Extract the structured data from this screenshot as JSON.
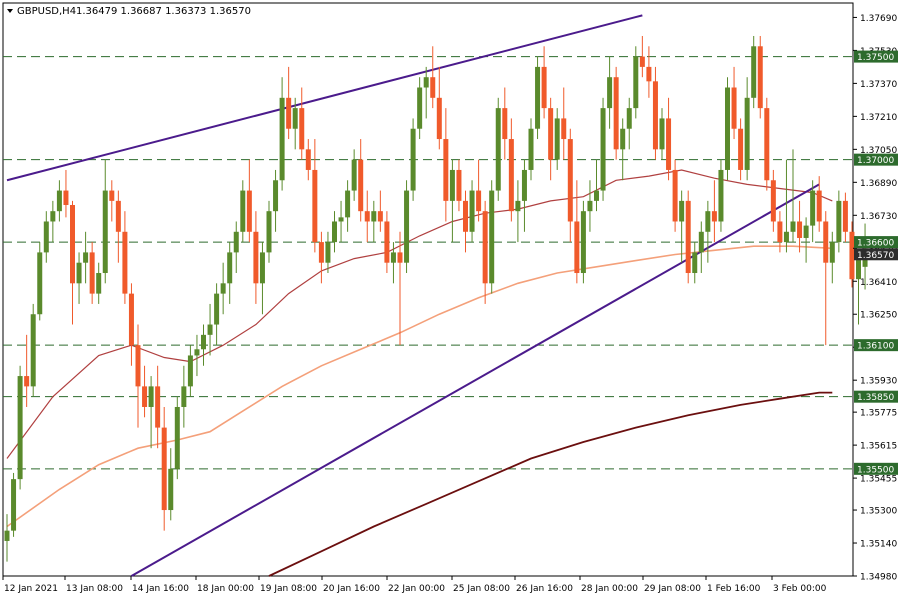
{
  "header": {
    "symbol": "GBPUSD,H4",
    "ohlc": "1.36479 1.36687 1.36373 1.36570"
  },
  "colors": {
    "bull": "#5a8a2c",
    "bear": "#f05a2b",
    "ma_fast": "#b04040",
    "ma_mid": "#f4a07a",
    "ma_slow": "#6b0f0f",
    "trendline": "#4b1b8c",
    "level_line": "#2d6b2d",
    "level_label_bg": "#2d6b2d",
    "current_label_bg": "#2d2d2d",
    "grid": "#000000"
  },
  "chart_data": {
    "type": "candlestick",
    "title": "GBPUSD,H4",
    "ylim": [
      1.3498,
      1.3776
    ],
    "y_ticks": [
      "1.37690",
      "1.37530",
      "1.37370",
      "1.37210",
      "1.37050",
      "1.36890",
      "1.36730",
      "1.36570",
      "1.36410",
      "1.36250",
      "1.36090",
      "1.35930",
      "1.35775",
      "1.35615",
      "1.35455",
      "1.35300",
      "1.35140",
      "1.34980"
    ],
    "x_ticks": [
      "12 Jan 2021",
      "13 Jan 08:00",
      "14 Jan 16:00",
      "18 Jan 00:00",
      "19 Jan 08:00",
      "20 Jan 16:00",
      "22 Jan 00:00",
      "25 Jan 08:00",
      "26 Jan 16:00",
      "28 Jan 00:00",
      "29 Jan 08:00",
      "1 Feb 16:00",
      "3 Feb 00:00"
    ],
    "levels": [
      {
        "value": 1.375,
        "label": "1.37500"
      },
      {
        "value": 1.37,
        "label": "1.37000"
      },
      {
        "value": 1.366,
        "label": "1.36600"
      },
      {
        "value": 1.361,
        "label": "1.36100"
      },
      {
        "value": 1.3585,
        "label": "1.35850"
      },
      {
        "value": 1.355,
        "label": "1.35500"
      }
    ],
    "current_price": {
      "value": 1.3657,
      "label": "1.36570"
    },
    "trendlines": [
      {
        "from": [
          0,
          1.369
        ],
        "to": [
          97,
          1.377
        ]
      },
      {
        "from": [
          19,
          1.3498
        ],
        "to": [
          124,
          1.3688
        ]
      }
    ],
    "candles": [
      [
        1.3515,
        1.3528,
        1.3505,
        1.352
      ],
      [
        1.352,
        1.3548,
        1.3517,
        1.3545
      ],
      [
        1.3545,
        1.36,
        1.354,
        1.3595
      ],
      [
        1.3595,
        1.3615,
        1.358,
        1.359
      ],
      [
        1.359,
        1.363,
        1.3585,
        1.3625
      ],
      [
        1.3625,
        1.366,
        1.3622,
        1.3655
      ],
      [
        1.3655,
        1.3675,
        1.365,
        1.367
      ],
      [
        1.367,
        1.368,
        1.366,
        1.3675
      ],
      [
        1.3675,
        1.369,
        1.367,
        1.3685
      ],
      [
        1.3685,
        1.3695,
        1.3672,
        1.3678
      ],
      [
        1.3678,
        1.368,
        1.362,
        1.364
      ],
      [
        1.364,
        1.3655,
        1.363,
        1.365
      ],
      [
        1.365,
        1.3665,
        1.364,
        1.3655
      ],
      [
        1.3655,
        1.366,
        1.363,
        1.3635
      ],
      [
        1.3635,
        1.365,
        1.363,
        1.3645
      ],
      [
        1.3645,
        1.37,
        1.364,
        1.3685
      ],
      [
        1.3685,
        1.369,
        1.367,
        1.368
      ],
      [
        1.368,
        1.3685,
        1.365,
        1.3665
      ],
      [
        1.3665,
        1.3675,
        1.363,
        1.3635
      ],
      [
        1.3635,
        1.364,
        1.36,
        1.361
      ],
      [
        1.361,
        1.362,
        1.357,
        1.359
      ],
      [
        1.359,
        1.36,
        1.3575,
        1.358
      ],
      [
        1.358,
        1.3595,
        1.356,
        1.359
      ],
      [
        1.359,
        1.36,
        1.356,
        1.357
      ],
      [
        1.357,
        1.358,
        1.352,
        1.353
      ],
      [
        1.353,
        1.356,
        1.3525,
        1.355
      ],
      [
        1.355,
        1.3585,
        1.3545,
        1.358
      ],
      [
        1.358,
        1.36,
        1.357,
        1.359
      ],
      [
        1.359,
        1.361,
        1.3585,
        1.3605
      ],
      [
        1.3605,
        1.3615,
        1.3595,
        1.3608
      ],
      [
        1.3608,
        1.362,
        1.36,
        1.3615
      ],
      [
        1.3615,
        1.363,
        1.3605,
        1.362
      ],
      [
        1.362,
        1.364,
        1.361,
        1.3635
      ],
      [
        1.3635,
        1.365,
        1.3625,
        1.364
      ],
      [
        1.364,
        1.366,
        1.363,
        1.3655
      ],
      [
        1.3655,
        1.367,
        1.3645,
        1.3665
      ],
      [
        1.3665,
        1.369,
        1.366,
        1.3685
      ],
      [
        1.3685,
        1.37,
        1.366,
        1.3665
      ],
      [
        1.3665,
        1.3675,
        1.363,
        1.364
      ],
      [
        1.364,
        1.366,
        1.3625,
        1.3655
      ],
      [
        1.3655,
        1.368,
        1.365,
        1.3675
      ],
      [
        1.3675,
        1.3695,
        1.3665,
        1.369
      ],
      [
        1.369,
        1.374,
        1.3685,
        1.373
      ],
      [
        1.373,
        1.3745,
        1.371,
        1.3715
      ],
      [
        1.3715,
        1.373,
        1.3705,
        1.3725
      ],
      [
        1.3725,
        1.3735,
        1.37,
        1.3705
      ],
      [
        1.3705,
        1.371,
        1.369,
        1.3695
      ],
      [
        1.3695,
        1.371,
        1.3655,
        1.366
      ],
      [
        1.366,
        1.3665,
        1.364,
        1.365
      ],
      [
        1.365,
        1.3665,
        1.3645,
        1.366
      ],
      [
        1.366,
        1.3675,
        1.3655,
        1.367
      ],
      [
        1.367,
        1.368,
        1.366,
        1.3672
      ],
      [
        1.3672,
        1.369,
        1.3665,
        1.3685
      ],
      [
        1.3685,
        1.3705,
        1.368,
        1.37
      ],
      [
        1.37,
        1.371,
        1.367,
        1.3675
      ],
      [
        1.3675,
        1.3685,
        1.366,
        1.367
      ],
      [
        1.367,
        1.368,
        1.366,
        1.3675
      ],
      [
        1.3675,
        1.3685,
        1.3665,
        1.367
      ],
      [
        1.367,
        1.3675,
        1.3645,
        1.365
      ],
      [
        1.365,
        1.366,
        1.364,
        1.3655
      ],
      [
        1.3655,
        1.3665,
        1.361,
        1.365
      ],
      [
        1.365,
        1.369,
        1.3645,
        1.3685
      ],
      [
        1.3685,
        1.372,
        1.368,
        1.3715
      ],
      [
        1.3715,
        1.374,
        1.371,
        1.3735
      ],
      [
        1.3735,
        1.3745,
        1.372,
        1.374
      ],
      [
        1.374,
        1.3755,
        1.3725,
        1.373
      ],
      [
        1.373,
        1.3745,
        1.3705,
        1.371
      ],
      [
        1.371,
        1.3725,
        1.367,
        1.368
      ],
      [
        1.368,
        1.37,
        1.366,
        1.3695
      ],
      [
        1.3695,
        1.37,
        1.3675,
        1.368
      ],
      [
        1.368,
        1.3685,
        1.3655,
        1.3665
      ],
      [
        1.3665,
        1.369,
        1.366,
        1.3685
      ],
      [
        1.3685,
        1.37,
        1.367,
        1.3675
      ],
      [
        1.3675,
        1.368,
        1.363,
        1.364
      ],
      [
        1.364,
        1.369,
        1.3635,
        1.3685
      ],
      [
        1.3685,
        1.373,
        1.368,
        1.3725
      ],
      [
        1.3725,
        1.3735,
        1.37,
        1.371
      ],
      [
        1.371,
        1.372,
        1.367,
        1.3675
      ],
      [
        1.3675,
        1.369,
        1.366,
        1.368
      ],
      [
        1.368,
        1.37,
        1.3665,
        1.3695
      ],
      [
        1.3695,
        1.372,
        1.369,
        1.3715
      ],
      [
        1.3715,
        1.375,
        1.371,
        1.3745
      ],
      [
        1.3745,
        1.3755,
        1.372,
        1.3725
      ],
      [
        1.3725,
        1.373,
        1.369,
        1.37
      ],
      [
        1.37,
        1.3725,
        1.3695,
        1.372
      ],
      [
        1.372,
        1.3735,
        1.37,
        1.371
      ],
      [
        1.371,
        1.3715,
        1.366,
        1.367
      ],
      [
        1.367,
        1.369,
        1.364,
        1.3645
      ],
      [
        1.3645,
        1.368,
        1.364,
        1.3675
      ],
      [
        1.3675,
        1.369,
        1.3665,
        1.368
      ],
      [
        1.368,
        1.37,
        1.3675,
        1.3685
      ],
      [
        1.3685,
        1.373,
        1.368,
        1.3725
      ],
      [
        1.3725,
        1.375,
        1.3715,
        1.374
      ],
      [
        1.374,
        1.3745,
        1.37,
        1.3705
      ],
      [
        1.3705,
        1.372,
        1.369,
        1.3715
      ],
      [
        1.3715,
        1.373,
        1.3705,
        1.3725
      ],
      [
        1.3725,
        1.3755,
        1.372,
        1.375
      ],
      [
        1.375,
        1.376,
        1.374,
        1.3745
      ],
      [
        1.3745,
        1.3755,
        1.373,
        1.3738
      ],
      [
        1.3738,
        1.3745,
        1.37,
        1.3705
      ],
      [
        1.3705,
        1.3725,
        1.37,
        1.372
      ],
      [
        1.372,
        1.373,
        1.369,
        1.3695
      ],
      [
        1.3695,
        1.37,
        1.3665,
        1.367
      ],
      [
        1.367,
        1.3685,
        1.365,
        1.368
      ],
      [
        1.368,
        1.3685,
        1.364,
        1.3645
      ],
      [
        1.3645,
        1.366,
        1.364,
        1.3655
      ],
      [
        1.3655,
        1.367,
        1.3645,
        1.3665
      ],
      [
        1.3665,
        1.368,
        1.365,
        1.3675
      ],
      [
        1.3675,
        1.369,
        1.366,
        1.367
      ],
      [
        1.367,
        1.37,
        1.3665,
        1.3695
      ],
      [
        1.3695,
        1.374,
        1.369,
        1.3735
      ],
      [
        1.3735,
        1.3745,
        1.371,
        1.3715
      ],
      [
        1.3715,
        1.372,
        1.369,
        1.3695
      ],
      [
        1.3695,
        1.374,
        1.369,
        1.373
      ],
      [
        1.373,
        1.376,
        1.3725,
        1.3755
      ],
      [
        1.3755,
        1.376,
        1.372,
        1.3725
      ],
      [
        1.3725,
        1.373,
        1.3685,
        1.369
      ],
      [
        1.369,
        1.3695,
        1.3665,
        1.367
      ],
      [
        1.367,
        1.3675,
        1.3655,
        1.366
      ],
      [
        1.366,
        1.37,
        1.3655,
        1.3665
      ],
      [
        1.3665,
        1.3705,
        1.366,
        1.367
      ],
      [
        1.367,
        1.368,
        1.3655,
        1.3662
      ],
      [
        1.3662,
        1.3672,
        1.365,
        1.3668
      ],
      [
        1.3668,
        1.369,
        1.366,
        1.3685
      ],
      [
        1.3685,
        1.3692,
        1.3665,
        1.367
      ],
      [
        1.367,
        1.3675,
        1.361,
        1.365
      ],
      [
        1.365,
        1.3665,
        1.364,
        1.366
      ],
      [
        1.366,
        1.3685,
        1.3655,
        1.368
      ],
      [
        1.368,
        1.3684,
        1.366,
        1.3665
      ],
      [
        1.3665,
        1.367,
        1.3638,
        1.3642
      ],
      [
        1.3642,
        1.3655,
        1.362,
        1.3652
      ],
      [
        1.3648,
        1.3669,
        1.3637,
        1.3657
      ]
    ],
    "ma_fast": [
      [
        0,
        1.3555
      ],
      [
        7,
        1.3585
      ],
      [
        14,
        1.3605
      ],
      [
        19,
        1.361
      ],
      [
        24,
        1.3604
      ],
      [
        28,
        1.3602
      ],
      [
        33,
        1.361
      ],
      [
        38,
        1.362
      ],
      [
        43,
        1.3635
      ],
      [
        48,
        1.3646
      ],
      [
        53,
        1.3652
      ],
      [
        58,
        1.3655
      ],
      [
        63,
        1.3663
      ],
      [
        68,
        1.367
      ],
      [
        73,
        1.3674
      ],
      [
        78,
        1.3676
      ],
      [
        83,
        1.368
      ],
      [
        88,
        1.3682
      ],
      [
        93,
        1.369
      ],
      [
        98,
        1.3692
      ],
      [
        103,
        1.3695
      ],
      [
        108,
        1.3691
      ],
      [
        113,
        1.3688
      ],
      [
        118,
        1.3686
      ],
      [
        123,
        1.3684
      ],
      [
        126,
        1.368
      ]
    ],
    "ma_mid": [
      [
        0,
        1.3522
      ],
      [
        8,
        1.354
      ],
      [
        14,
        1.3552
      ],
      [
        20,
        1.356
      ],
      [
        26,
        1.3564
      ],
      [
        31,
        1.3568
      ],
      [
        36,
        1.3578
      ],
      [
        42,
        1.359
      ],
      [
        48,
        1.36
      ],
      [
        54,
        1.3608
      ],
      [
        60,
        1.3616
      ],
      [
        66,
        1.3625
      ],
      [
        72,
        1.3633
      ],
      [
        78,
        1.364
      ],
      [
        84,
        1.3645
      ],
      [
        90,
        1.3648
      ],
      [
        96,
        1.3651
      ],
      [
        102,
        1.3654
      ],
      [
        108,
        1.3656
      ],
      [
        114,
        1.3658
      ],
      [
        120,
        1.3658
      ],
      [
        126,
        1.3657
      ]
    ],
    "ma_slow": [
      [
        40,
        1.3498
      ],
      [
        48,
        1.351
      ],
      [
        56,
        1.3522
      ],
      [
        64,
        1.3533
      ],
      [
        72,
        1.3544
      ],
      [
        80,
        1.3555
      ],
      [
        88,
        1.3563
      ],
      [
        96,
        1.357
      ],
      [
        104,
        1.3576
      ],
      [
        112,
        1.3581
      ],
      [
        118,
        1.3584
      ],
      [
        124,
        1.3587
      ],
      [
        126,
        1.3587
      ]
    ]
  }
}
